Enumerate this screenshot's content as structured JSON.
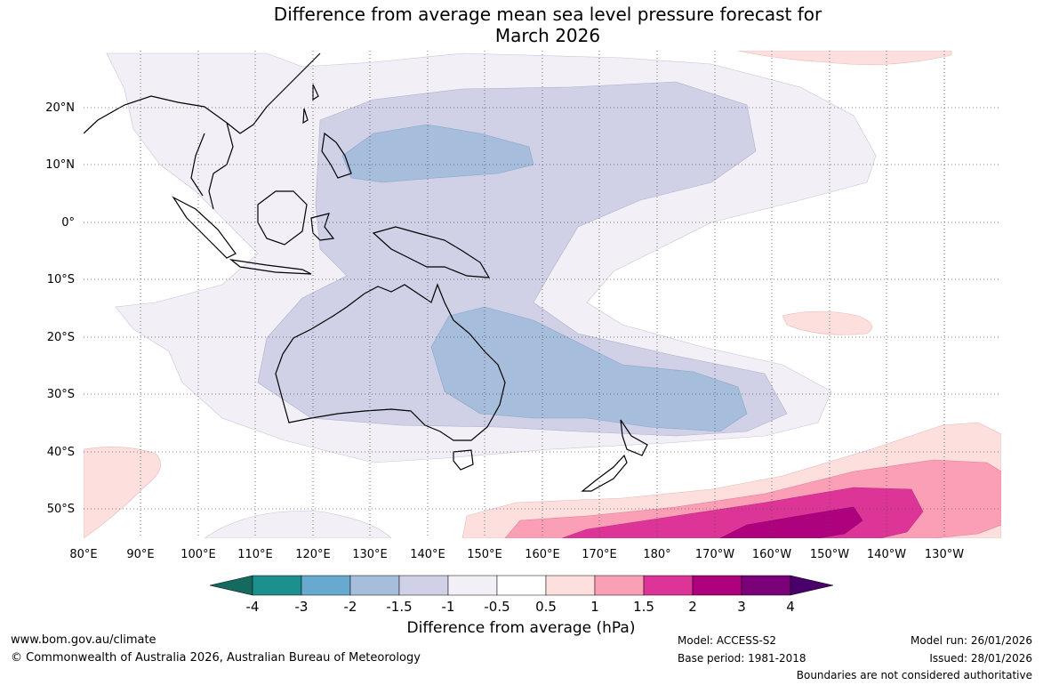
{
  "title_line1": "Difference from average mean sea level pressure forecast for",
  "title_line2": "March 2026",
  "map": {
    "lon_labels": [
      "80°E",
      "90°E",
      "100°E",
      "110°E",
      "120°E",
      "130°E",
      "140°E",
      "150°E",
      "160°E",
      "170°E",
      "180°",
      "170°W",
      "160°W",
      "150°W",
      "140°W",
      "130°W"
    ],
    "lat_labels": [
      "20°N",
      "10°N",
      "0°",
      "10°S",
      "20°S",
      "30°S",
      "40°S",
      "50°S"
    ]
  },
  "colorbar": {
    "ticks": [
      "-4",
      "-3",
      "-2",
      "-1.5",
      "-1",
      "-0.5",
      "0.5",
      "1",
      "1.5",
      "2",
      "3",
      "4"
    ],
    "colors": [
      "#16695e",
      "#1c8f8f",
      "#67a9cf",
      "#a6bddb",
      "#d0d1e6",
      "#f2eff7",
      "#ffffff",
      "#fde0dd",
      "#fa9fb5",
      "#dd3497",
      "#ae017e",
      "#7a0177",
      "#49006a"
    ],
    "label": "Difference from average (hPa)"
  },
  "footer": {
    "website": "www.bom.gov.au/climate",
    "copyright": "© Commonwealth of Australia 2026, Australian Bureau of Meteorology",
    "model": "Model: ACCESS-S2",
    "base_period": "Base period: 1981-2018",
    "model_run": "Model run: 26/01/2026",
    "issued": "Issued: 28/01/2026",
    "disclaimer": "Boundaries are not considered authoritative"
  }
}
